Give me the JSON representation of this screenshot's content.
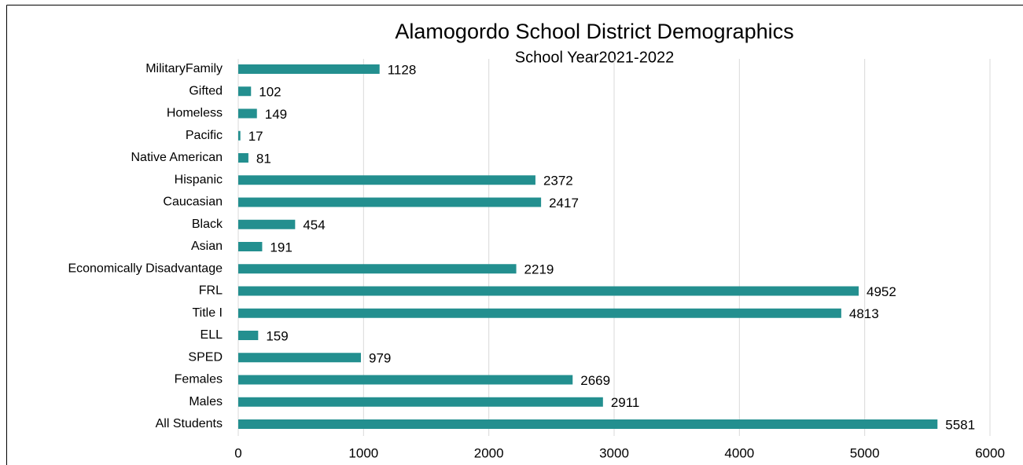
{
  "chart_data": {
    "type": "bar",
    "orientation": "horizontal",
    "title": "Alamogordo School District Demographics",
    "subtitle": "School Year2021-2022",
    "categories": [
      "MilitaryFamily",
      "Gifted",
      "Homeless",
      "Pacific",
      "Native American",
      "Hispanic",
      "Caucasian",
      "Black",
      "Asian",
      "Economically Disadvantage",
      "FRL",
      "Title I",
      "ELL",
      "SPED",
      "Females",
      "Males",
      "All Students"
    ],
    "values": [
      1128,
      102,
      149,
      17,
      81,
      2372,
      2417,
      454,
      191,
      2219,
      4952,
      4813,
      159,
      979,
      2669,
      2911,
      5581
    ],
    "color": "#238f8f",
    "xlim": [
      0,
      6000
    ],
    "xticks": [
      0,
      1000,
      2000,
      3000,
      4000,
      5000,
      6000
    ],
    "grid": true
  }
}
